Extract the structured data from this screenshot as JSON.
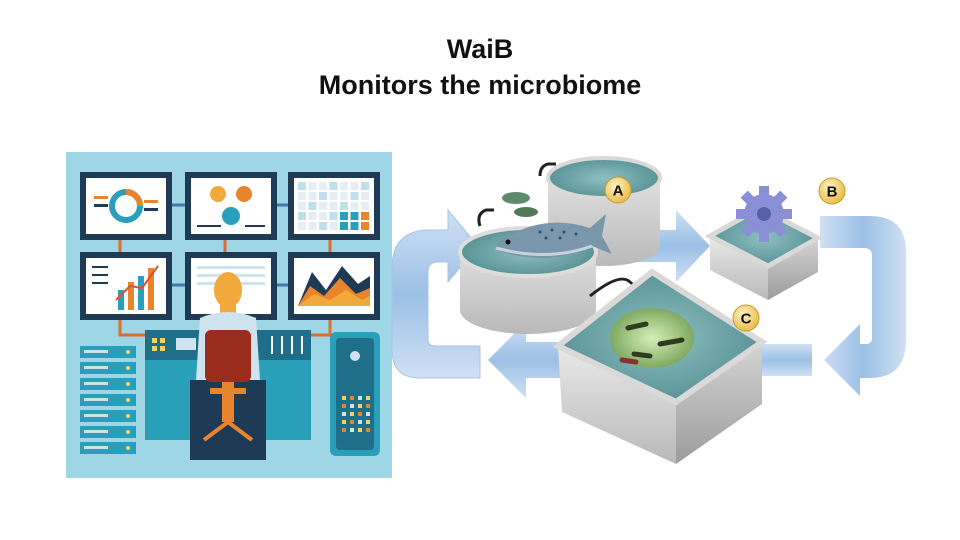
{
  "slide": {
    "title_line1": "WaiB",
    "title_line2": "Monitors the microbiome"
  },
  "badges": {
    "a": "A",
    "b": "B",
    "c": "C"
  },
  "colors": {
    "panel_bg": "#9fd6e6",
    "monitor_frame": "#1f3a55",
    "arrow_blue": "#8fb6e0",
    "badge_fill": "#f6d77a",
    "water": "#6fa6a8"
  }
}
